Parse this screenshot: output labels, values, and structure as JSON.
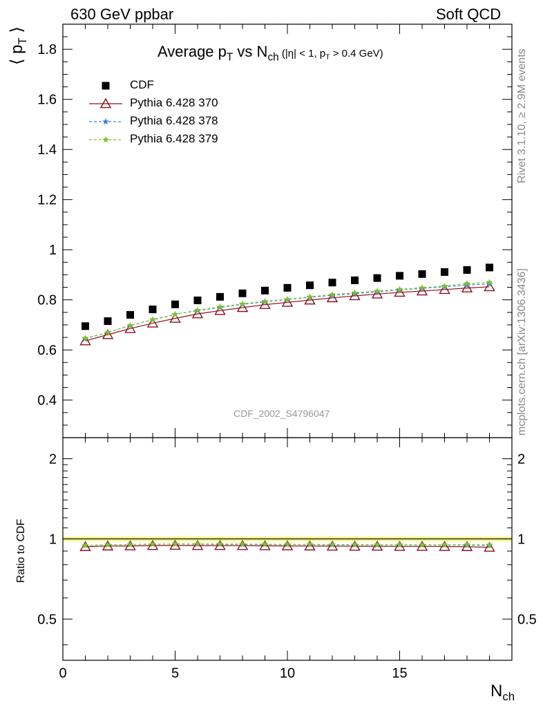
{
  "header": {
    "left": "630 GeV ppbar",
    "right": "Soft QCD"
  },
  "side_labels": {
    "rivet": "Rivet 3.1.10, ≥ 2.9M events",
    "mcplots": "mcplots.cern.ch [arXiv:1306.3436]"
  },
  "plot_title": {
    "main": "Average p",
    "main_sub": "T",
    "vs": " vs N",
    "vs_sub": "ch",
    "cut_a": " (|η| < 1, p",
    "cut_sub": "T",
    "cut_b": " > 0.4 GeV)"
  },
  "watermark": "CDF_2002_S4796047",
  "axis_labels": {
    "y_main": "⟨ p",
    "y_main_sub": "T",
    "y_main_end": " ⟩",
    "y_ratio": "Ratio to CDF",
    "x": "N",
    "x_sub": "ch"
  },
  "colors": {
    "cdf": "#000000",
    "p370": "#8b0f1f",
    "p378": "#3b7fd9",
    "p379": "#7cc425",
    "band": "#f2f58a"
  },
  "chart_data": {
    "type": "line",
    "x": [
      1,
      2,
      3,
      4,
      5,
      6,
      7,
      8,
      9,
      10,
      11,
      12,
      13,
      14,
      15,
      16,
      17,
      18,
      19
    ],
    "xlim": [
      0,
      20
    ],
    "xticks": [
      "0",
      "5",
      "10",
      "15"
    ],
    "ylim": [
      0.25,
      1.9
    ],
    "yticks": [
      "0.4",
      "0.6",
      "0.8",
      "1",
      "1.2",
      "1.4",
      "1.6",
      "1.8"
    ],
    "ratio_ylim": [
      0.35,
      2.4
    ],
    "ratio_yticks": [
      "0.5",
      "1",
      "2"
    ],
    "legend_position": "top-left",
    "series": [
      {
        "name": "CDF",
        "marker": "square",
        "values": [
          0.695,
          0.715,
          0.74,
          0.762,
          0.782,
          0.798,
          0.812,
          0.826,
          0.837,
          0.848,
          0.858,
          0.869,
          0.878,
          0.887,
          0.896,
          0.903,
          0.911,
          0.919,
          0.929
        ]
      },
      {
        "name": "Pythia 6.428 370",
        "marker": "triangle",
        "values": [
          0.636,
          0.661,
          0.685,
          0.707,
          0.726,
          0.744,
          0.757,
          0.769,
          0.781,
          0.79,
          0.799,
          0.808,
          0.816,
          0.823,
          0.83,
          0.835,
          0.841,
          0.847,
          0.852
        ]
      },
      {
        "name": "Pythia 6.428 378",
        "marker": "star",
        "values": [
          0.645,
          0.67,
          0.697,
          0.721,
          0.742,
          0.757,
          0.77,
          0.782,
          0.792,
          0.801,
          0.81,
          0.818,
          0.825,
          0.832,
          0.84,
          0.846,
          0.852,
          0.859,
          0.864
        ]
      },
      {
        "name": "Pythia 6.428 379",
        "marker": "star",
        "values": [
          0.647,
          0.669,
          0.698,
          0.72,
          0.741,
          0.759,
          0.772,
          0.784,
          0.794,
          0.802,
          0.812,
          0.821,
          0.828,
          0.835,
          0.842,
          0.848,
          0.855,
          0.865,
          0.87
        ]
      }
    ],
    "ratio_series": [
      {
        "name": "Pythia 6.428 370",
        "values": [
          0.935,
          0.94,
          0.941,
          0.944,
          0.945,
          0.944,
          0.944,
          0.943,
          0.942,
          0.941,
          0.94,
          0.939,
          0.938,
          0.938,
          0.937,
          0.937,
          0.936,
          0.935,
          0.93
        ]
      },
      {
        "name": "Pythia 6.428 378",
        "values": [
          0.945,
          0.951,
          0.952,
          0.955,
          0.957,
          0.955,
          0.954,
          0.953,
          0.952,
          0.952,
          0.951,
          0.95,
          0.95,
          0.949,
          0.949,
          0.948,
          0.948,
          0.947,
          0.945
        ]
      },
      {
        "name": "Pythia 6.428 379",
        "values": [
          0.946,
          0.95,
          0.953,
          0.955,
          0.957,
          0.958,
          0.957,
          0.956,
          0.955,
          0.954,
          0.954,
          0.953,
          0.952,
          0.951,
          0.951,
          0.95,
          0.95,
          0.951,
          0.95
        ]
      }
    ]
  }
}
